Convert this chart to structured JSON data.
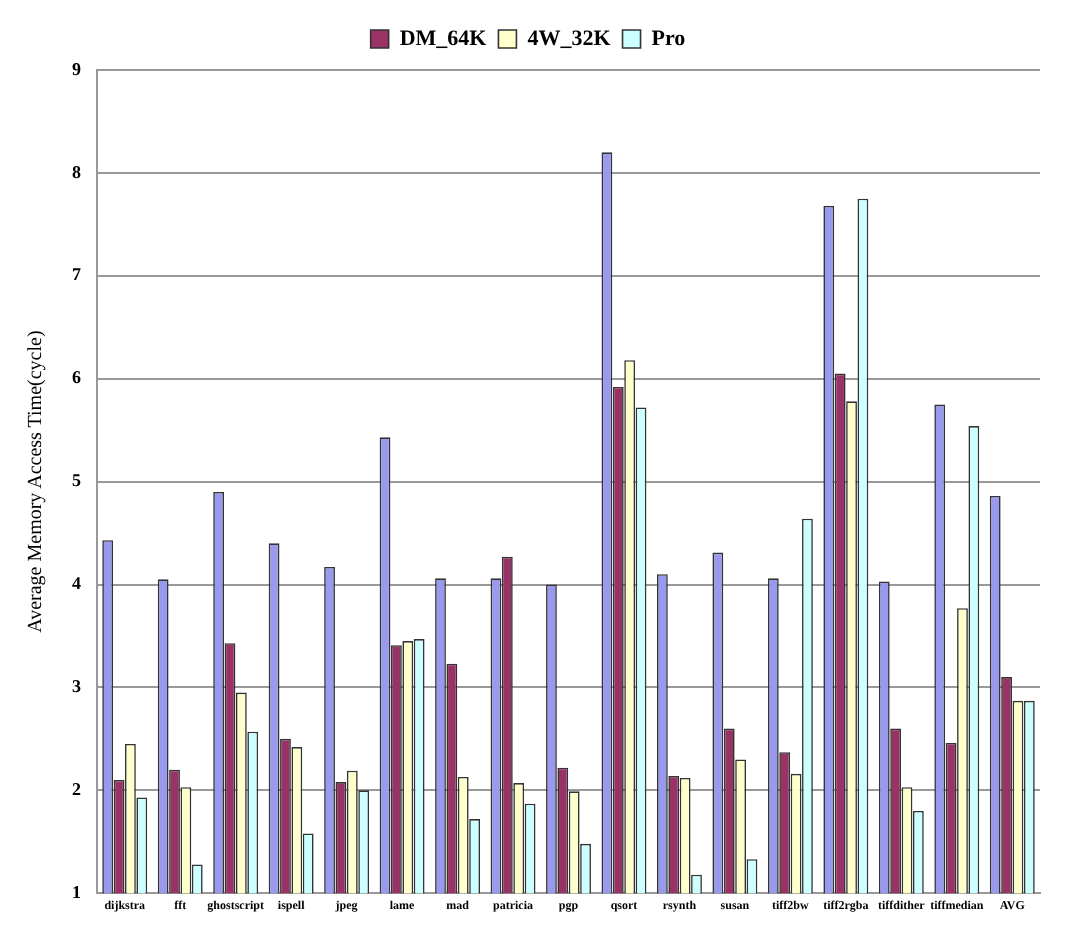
{
  "chart_data": {
    "type": "bar",
    "ylabel": "Average Memory Access Time(cycle)",
    "categories": [
      "dijkstra",
      "fft",
      "ghostscript",
      "ispell",
      "jpeg",
      "lame",
      "mad",
      "patricia",
      "pgp",
      "qsort",
      "rsynth",
      "susan",
      "tiff2bw",
      "tiff2rgba",
      "tiffdither",
      "tiffmedian",
      "AVG"
    ],
    "series": [
      {
        "color": "#9999ee",
        "values": [
          4.43,
          4.05,
          4.9,
          4.4,
          4.17,
          5.43,
          4.06,
          4.06,
          4.0,
          8.2,
          4.1,
          4.31,
          4.06,
          7.68,
          4.03,
          5.75,
          4.86
        ]
      },
      {
        "name": "DM_64K",
        "color": "#993366",
        "values": [
          2.1,
          2.2,
          3.43,
          2.5,
          2.08,
          3.41,
          3.23,
          4.27,
          2.22,
          5.92,
          2.14,
          2.6,
          2.37,
          6.05,
          2.6,
          2.46,
          3.1
        ]
      },
      {
        "name": "4W_32K",
        "color": "#ffffcc",
        "values": [
          2.45,
          2.03,
          2.95,
          2.42,
          2.19,
          3.45,
          2.13,
          2.07,
          1.99,
          6.18,
          2.12,
          2.3,
          2.16,
          5.78,
          2.03,
          3.77,
          2.87
        ]
      },
      {
        "name": "Pro",
        "color": "#ccffff",
        "values": [
          1.93,
          1.28,
          2.57,
          1.58,
          2.0,
          3.47,
          1.72,
          1.87,
          1.48,
          5.72,
          1.18,
          1.33,
          4.64,
          7.75,
          1.8,
          5.54,
          2.87
        ]
      }
    ],
    "ylim": [
      1,
      9
    ],
    "yticks": [
      1,
      2,
      3,
      4,
      5,
      6,
      7,
      8,
      9
    ],
    "grid": "y",
    "legend": "top"
  }
}
